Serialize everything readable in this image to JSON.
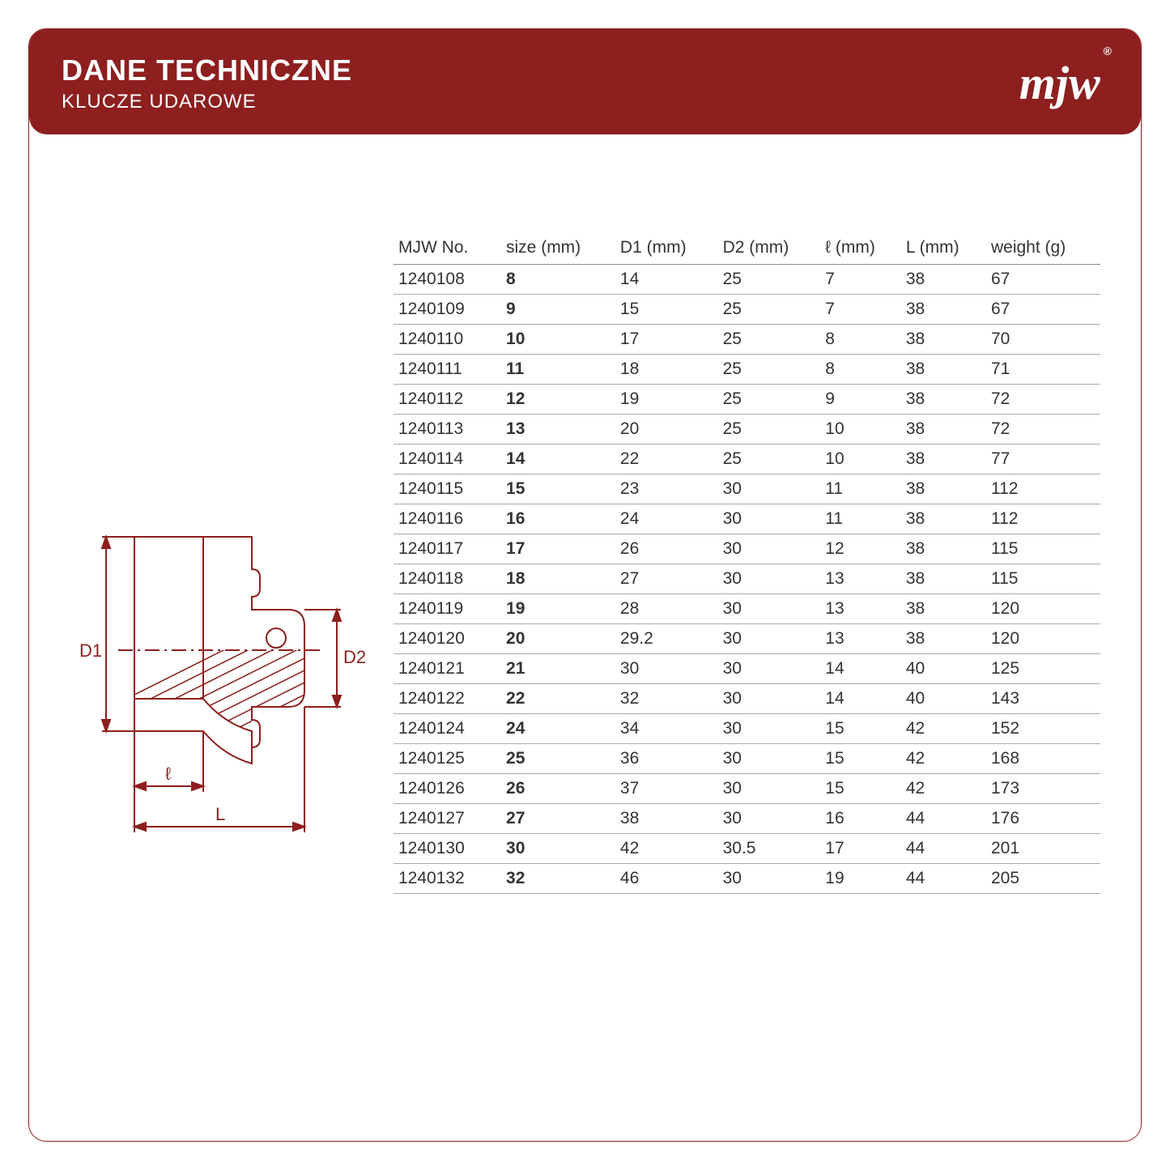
{
  "header": {
    "title": "DANE TECHNICZNE",
    "subtitle": "KLUCZE UDAROWE",
    "logo_text": "mjw",
    "logo_registered": "®",
    "bg_color": "#8d1f1f",
    "text_color": "#ffffff"
  },
  "diagram": {
    "labels": {
      "d1": "D1",
      "d2": "D2",
      "l_small": "ℓ",
      "l_large": "L"
    },
    "stroke_color": "#8d1f1f",
    "fill_color": "#ffffff",
    "hatch_color": "#8d1f1f"
  },
  "table": {
    "columns": [
      "MJW No.",
      "size (mm)",
      "D1 (mm)",
      "D2 (mm)",
      "ℓ (mm)",
      "L (mm)",
      "weight (g)"
    ],
    "bold_column_index": 1,
    "header_border_color": "#888888",
    "row_border_color": "#aaaaaa",
    "text_color": "#333333",
    "font_size": 21,
    "rows": [
      [
        "1240108",
        "8",
        "14",
        "25",
        "7",
        "38",
        "67"
      ],
      [
        "1240109",
        "9",
        "15",
        "25",
        "7",
        "38",
        "67"
      ],
      [
        "1240110",
        "10",
        "17",
        "25",
        "8",
        "38",
        "70"
      ],
      [
        "1240111",
        "11",
        "18",
        "25",
        "8",
        "38",
        "71"
      ],
      [
        "1240112",
        "12",
        "19",
        "25",
        "9",
        "38",
        "72"
      ],
      [
        "1240113",
        "13",
        "20",
        "25",
        "10",
        "38",
        "72"
      ],
      [
        "1240114",
        "14",
        "22",
        "25",
        "10",
        "38",
        "77"
      ],
      [
        "1240115",
        "15",
        "23",
        "30",
        "11",
        "38",
        "112"
      ],
      [
        "1240116",
        "16",
        "24",
        "30",
        "11",
        "38",
        "112"
      ],
      [
        "1240117",
        "17",
        "26",
        "30",
        "12",
        "38",
        "115"
      ],
      [
        "1240118",
        "18",
        "27",
        "30",
        "13",
        "38",
        "115"
      ],
      [
        "1240119",
        "19",
        "28",
        "30",
        "13",
        "38",
        "120"
      ],
      [
        "1240120",
        "20",
        "29.2",
        "30",
        "13",
        "38",
        "120"
      ],
      [
        "1240121",
        "21",
        "30",
        "30",
        "14",
        "40",
        "125"
      ],
      [
        "1240122",
        "22",
        "32",
        "30",
        "14",
        "40",
        "143"
      ],
      [
        "1240124",
        "24",
        "34",
        "30",
        "15",
        "42",
        "152"
      ],
      [
        "1240125",
        "25",
        "36",
        "30",
        "15",
        "42",
        "168"
      ],
      [
        "1240126",
        "26",
        "37",
        "30",
        "15",
        "42",
        "173"
      ],
      [
        "1240127",
        "27",
        "38",
        "30",
        "16",
        "44",
        "176"
      ],
      [
        "1240130",
        "30",
        "42",
        "30.5",
        "17",
        "44",
        "201"
      ],
      [
        "1240132",
        "32",
        "46",
        "30",
        "19",
        "44",
        "205"
      ]
    ]
  }
}
